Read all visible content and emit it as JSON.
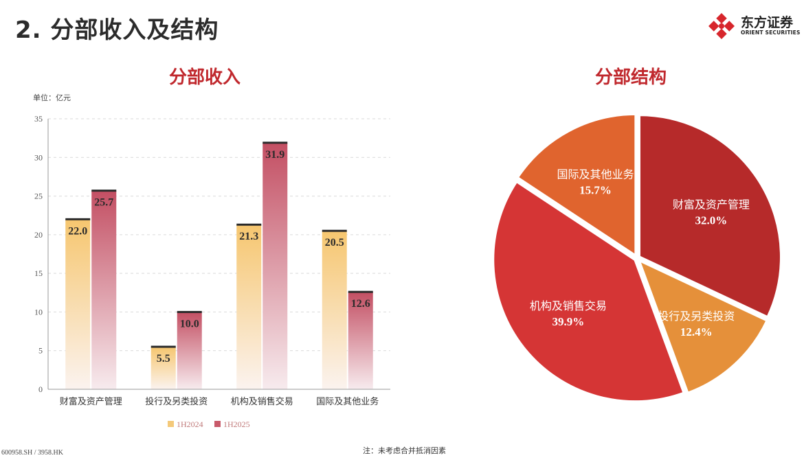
{
  "page": {
    "title": "2. 分部收入及结构",
    "footer_code": "600958.SH / 3958.HK",
    "footer_note": "注：未考虑合并抵消因素"
  },
  "logo": {
    "name": "东方证券",
    "sub": "ORIENT SECURITIES",
    "color": "#d7262c"
  },
  "colors": {
    "series_2024": "#f4c97a",
    "series_2025": "#c85a6a",
    "pie": [
      "#b62a2a",
      "#e5903a",
      "#d53535",
      "#e0642e"
    ],
    "title_red": "#c0282d"
  },
  "chart_data": [
    {
      "type": "bar",
      "title": "分部收入",
      "unit_label": "单位：亿元",
      "categories": [
        "财富及资产管理",
        "投行及另类投资",
        "机构及销售交易",
        "国际及其他业务"
      ],
      "series": [
        {
          "name": "1H2024",
          "values": [
            22.0,
            5.5,
            21.3,
            20.5
          ]
        },
        {
          "name": "1H2025",
          "values": [
            25.7,
            10.0,
            31.9,
            12.6
          ]
        }
      ],
      "ylim": [
        0,
        35
      ],
      "yticks": [
        0,
        5,
        10,
        15,
        20,
        25,
        30,
        35
      ],
      "grid": true,
      "legend_position": "bottom"
    },
    {
      "type": "pie",
      "title": "分部结构",
      "slices": [
        {
          "label": "财富及资产管理",
          "value": 32.0,
          "value_label": "32.0%"
        },
        {
          "label": "投行及另类投资",
          "value": 12.4,
          "value_label": "12.4%"
        },
        {
          "label": "机构及销售交易",
          "value": 39.9,
          "value_label": "39.9%"
        },
        {
          "label": "国际及其他业务",
          "value": 15.7,
          "value_label": "15.7%"
        }
      ]
    }
  ]
}
